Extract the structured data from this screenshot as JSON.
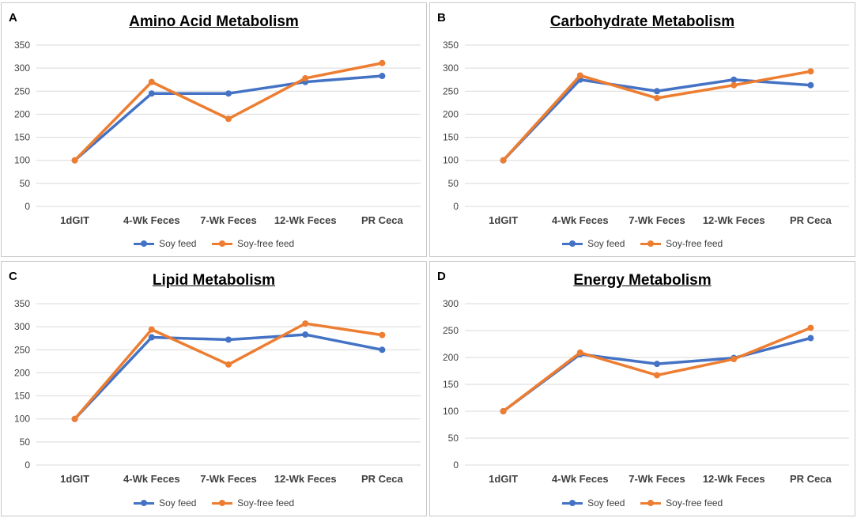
{
  "colors": {
    "soy": "#4472C4",
    "soyfree": "#ED7D31",
    "grid": "#d9d9d9"
  },
  "chart_data": [
    {
      "type": "line",
      "panel_label": "A",
      "title": "Amino Acid Metabolism",
      "categories": [
        "1dGIT",
        "4-Wk Feces",
        "7-Wk Feces",
        "12-Wk Feces",
        "PR Ceca"
      ],
      "ylim": [
        0,
        350
      ],
      "yticks": [
        0,
        50,
        100,
        150,
        200,
        250,
        300,
        350
      ],
      "series": [
        {
          "name": "Soy feed",
          "color": "#4472C4",
          "values": [
            100,
            245,
            245,
            270,
            283
          ]
        },
        {
          "name": "Soy-free feed",
          "color": "#ED7D31",
          "values": [
            100,
            270,
            190,
            278,
            311
          ]
        }
      ],
      "legend": "bottom"
    },
    {
      "type": "line",
      "panel_label": "B",
      "title": "Carbohydrate Metabolism",
      "categories": [
        "1dGIT",
        "4-Wk Feces",
        "7-Wk Feces",
        "12-Wk Feces",
        "PR Ceca"
      ],
      "ylim": [
        0,
        350
      ],
      "yticks": [
        0,
        50,
        100,
        150,
        200,
        250,
        300,
        350
      ],
      "series": [
        {
          "name": "Soy feed",
          "color": "#4472C4",
          "values": [
            100,
            275,
            250,
            275,
            263
          ]
        },
        {
          "name": "Soy-free feed",
          "color": "#ED7D31",
          "values": [
            100,
            284,
            235,
            263,
            293
          ]
        }
      ],
      "legend": "bottom"
    },
    {
      "type": "line",
      "panel_label": "C",
      "title": "Lipid Metabolism",
      "categories": [
        "1dGIT",
        "4-Wk Feces",
        "7-Wk Feces",
        "12-Wk Feces",
        "PR Ceca"
      ],
      "ylim": [
        0,
        350
      ],
      "yticks": [
        0,
        50,
        100,
        150,
        200,
        250,
        300,
        350
      ],
      "series": [
        {
          "name": "Soy feed",
          "color": "#4472C4",
          "values": [
            100,
            277,
            272,
            283,
            250
          ]
        },
        {
          "name": "Soy-free feed",
          "color": "#ED7D31",
          "values": [
            100,
            294,
            218,
            307,
            282
          ]
        }
      ],
      "legend": "bottom"
    },
    {
      "type": "line",
      "panel_label": "D",
      "title": "Energy Metabolism",
      "categories": [
        "1dGIT",
        "4-Wk Feces",
        "7-Wk Feces",
        "12-Wk Feces",
        "PR Ceca"
      ],
      "ylim": [
        0,
        300
      ],
      "yticks": [
        0,
        50,
        100,
        150,
        200,
        250,
        300
      ],
      "series": [
        {
          "name": "Soy feed",
          "color": "#4472C4",
          "values": [
            100,
            206,
            188,
            199,
            236
          ]
        },
        {
          "name": "Soy-free feed",
          "color": "#ED7D31",
          "values": [
            100,
            209,
            167,
            197,
            255
          ]
        }
      ],
      "legend": "bottom"
    }
  ]
}
